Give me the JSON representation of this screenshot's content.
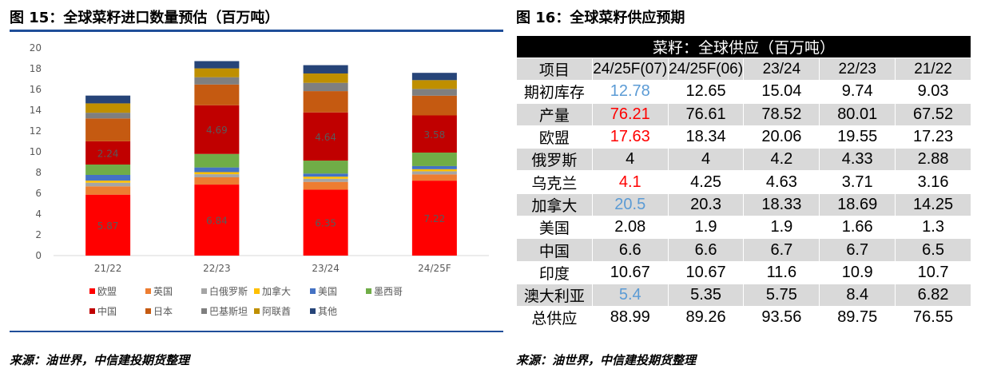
{
  "figure15": {
    "title": "图 15：全球菜籽进口数量预估（百万吨）",
    "source": "来源：油世界，中信建投期货整理"
  },
  "figure16": {
    "title": "图 16：全球菜籽供应预期",
    "source": "来源：油世界，中信建投期货整理"
  },
  "chart_data": {
    "type": "bar",
    "stacked": true,
    "title": "",
    "xlabel": "",
    "ylabel": "",
    "ylim": [
      0,
      20
    ],
    "yticks": [
      0,
      2,
      4,
      6,
      8,
      10,
      12,
      14,
      16,
      18,
      20
    ],
    "grid": false,
    "legend_position": "bottom",
    "categories": [
      "21/22",
      "22/23",
      "23/24",
      "24/25F"
    ],
    "series": [
      {
        "name": "欧盟",
        "color": "#ff0000",
        "values": [
          5.87,
          6.84,
          6.35,
          7.22
        ]
      },
      {
        "name": "英国",
        "color": "#ed7d31",
        "values": [
          0.8,
          0.7,
          0.75,
          0.6
        ]
      },
      {
        "name": "白俄罗斯",
        "color": "#a5a5a5",
        "values": [
          0.35,
          0.3,
          0.3,
          0.3
        ]
      },
      {
        "name": "加拿大",
        "color": "#ffc000",
        "values": [
          0.2,
          0.2,
          0.2,
          0.2
        ]
      },
      {
        "name": "美国",
        "color": "#4472c4",
        "values": [
          0.55,
          0.45,
          0.3,
          0.3
        ]
      },
      {
        "name": "墨西哥",
        "color": "#70ad47",
        "values": [
          1.0,
          1.3,
          1.25,
          1.3
        ]
      },
      {
        "name": "中国",
        "color": "#c00000",
        "values": [
          2.24,
          4.69,
          4.64,
          3.58
        ]
      },
      {
        "name": "日本",
        "color": "#c55a11",
        "values": [
          2.2,
          2.0,
          2.05,
          1.9
        ]
      },
      {
        "name": "巴基斯坦",
        "color": "#7f7f7f",
        "values": [
          0.55,
          0.7,
          0.8,
          0.65
        ]
      },
      {
        "name": "阿联酋",
        "color": "#bf8f00",
        "values": [
          0.9,
          0.85,
          0.9,
          0.85
        ]
      },
      {
        "name": "其他",
        "color": "#264478",
        "values": [
          0.75,
          0.7,
          0.8,
          0.7
        ]
      }
    ],
    "data_labels": [
      {
        "series": "欧盟",
        "values": [
          "5.87",
          "6.84",
          "6.35",
          "7.22"
        ]
      },
      {
        "series": "中国",
        "values": [
          "2.24",
          "4.69",
          "4.64",
          "3.58"
        ]
      }
    ]
  },
  "table": {
    "banner": "菜籽：全球供应（百万吨）",
    "headers": [
      "项目",
      "24/25F(07)",
      "24/25F(06)",
      "23/24",
      "22/23",
      "21/22"
    ],
    "rows": [
      {
        "label": "期初库存",
        "values": [
          "12.78",
          "12.65",
          "15.04",
          "9.74",
          "9.03"
        ],
        "hl": "blue"
      },
      {
        "label": "产量",
        "values": [
          "76.21",
          "76.61",
          "78.52",
          "80.01",
          "67.52"
        ],
        "hl": "red"
      },
      {
        "label": "欧盟",
        "values": [
          "17.63",
          "18.34",
          "20.06",
          "19.55",
          "17.23"
        ],
        "hl": "red"
      },
      {
        "label": "俄罗斯",
        "values": [
          "4",
          "4",
          "4.2",
          "4.33",
          "2.88"
        ],
        "hl": ""
      },
      {
        "label": "乌克兰",
        "values": [
          "4.1",
          "4.25",
          "4.63",
          "3.71",
          "3.16"
        ],
        "hl": "red"
      },
      {
        "label": "加拿大",
        "values": [
          "20.5",
          "20.3",
          "18.33",
          "18.69",
          "14.25"
        ],
        "hl": "blue"
      },
      {
        "label": "美国",
        "values": [
          "2.08",
          "1.9",
          "1.9",
          "1.66",
          "1.3"
        ],
        "hl": ""
      },
      {
        "label": "中国",
        "values": [
          "6.6",
          "6.6",
          "6.7",
          "6.7",
          "6.5"
        ],
        "hl": ""
      },
      {
        "label": "印度",
        "values": [
          "10.67",
          "10.67",
          "11.6",
          "10.9",
          "10.7"
        ],
        "hl": ""
      },
      {
        "label": "澳大利亚",
        "values": [
          "5.4",
          "5.35",
          "5.75",
          "8.4",
          "6.82"
        ],
        "hl": "blue"
      },
      {
        "label": "总供应",
        "values": [
          "88.99",
          "89.26",
          "93.56",
          "89.75",
          "76.55"
        ],
        "hl": ""
      }
    ]
  }
}
